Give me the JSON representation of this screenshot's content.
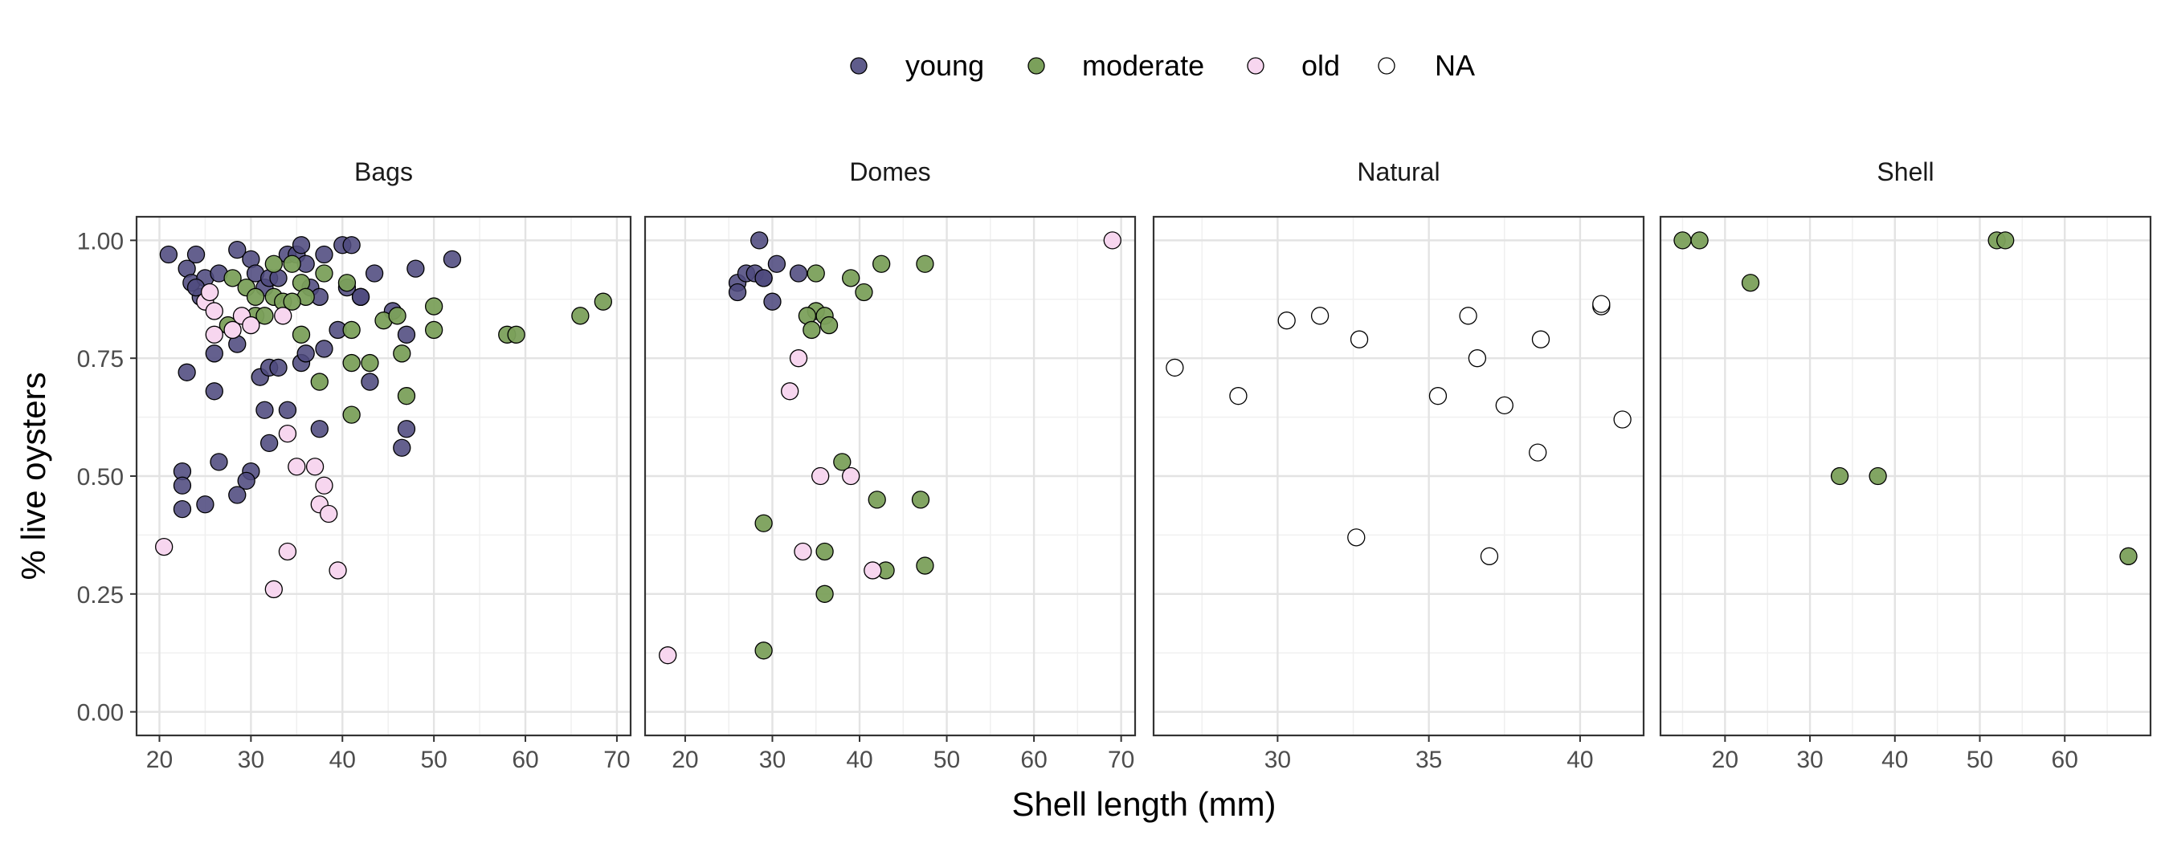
{
  "chart_data": {
    "type": "scatter",
    "title": "",
    "xlabel": "Shell length (mm)",
    "ylabel": "% live oysters",
    "grid": true,
    "legend_position": "top",
    "legend": [
      {
        "key": "young",
        "label": "young",
        "color": "#4e4a7e"
      },
      {
        "key": "moderate",
        "label": "moderate",
        "color": "#7ba05b"
      },
      {
        "key": "old",
        "label": "old",
        "color": "#f7d6ef"
      },
      {
        "key": "NA",
        "label": "NA",
        "color": "#ffffff"
      }
    ],
    "y_ticks": [
      {
        "value": 0,
        "label": "0.00"
      },
      {
        "value": 0.25,
        "label": "0.25"
      },
      {
        "value": 0.5,
        "label": "0.50"
      },
      {
        "value": 0.75,
        "label": "0.75"
      },
      {
        "value": 1,
        "label": "1.00"
      }
    ],
    "ylim": [
      -0.05,
      1.05
    ],
    "panels": [
      {
        "name": "Bags",
        "xlim": [
          17.5,
          71.5
        ],
        "x_ticks": [
          {
            "value": 20,
            "label": "20"
          },
          {
            "value": 30,
            "label": "30"
          },
          {
            "value": 40,
            "label": "40"
          },
          {
            "value": 50,
            "label": "50"
          },
          {
            "value": 60,
            "label": "60"
          },
          {
            "value": 70,
            "label": "70"
          }
        ],
        "points": [
          {
            "x": 21,
            "y": 0.97,
            "g": "young"
          },
          {
            "x": 23,
            "y": 0.94,
            "g": "young"
          },
          {
            "x": 23.5,
            "y": 0.91,
            "g": "young"
          },
          {
            "x": 24,
            "y": 0.97,
            "g": "young"
          },
          {
            "x": 24.5,
            "y": 0.88,
            "g": "young"
          },
          {
            "x": 25,
            "y": 0.92,
            "g": "young"
          },
          {
            "x": 24,
            "y": 0.9,
            "g": "young"
          },
          {
            "x": 26.5,
            "y": 0.93,
            "g": "young"
          },
          {
            "x": 28.5,
            "y": 0.98,
            "g": "young"
          },
          {
            "x": 30,
            "y": 0.96,
            "g": "young"
          },
          {
            "x": 30.5,
            "y": 0.93,
            "g": "young"
          },
          {
            "x": 31.5,
            "y": 0.9,
            "g": "young"
          },
          {
            "x": 32,
            "y": 0.92,
            "g": "young"
          },
          {
            "x": 33,
            "y": 0.92,
            "g": "young"
          },
          {
            "x": 34,
            "y": 0.97,
            "g": "young"
          },
          {
            "x": 35,
            "y": 0.97,
            "g": "young"
          },
          {
            "x": 35.5,
            "y": 0.99,
            "g": "young"
          },
          {
            "x": 36,
            "y": 0.95,
            "g": "young"
          },
          {
            "x": 36.5,
            "y": 0.9,
            "g": "young"
          },
          {
            "x": 37.5,
            "y": 0.88,
            "g": "young"
          },
          {
            "x": 38,
            "y": 0.97,
            "g": "young"
          },
          {
            "x": 40,
            "y": 0.99,
            "g": "young"
          },
          {
            "x": 41,
            "y": 0.99,
            "g": "young"
          },
          {
            "x": 40.5,
            "y": 0.9,
            "g": "young"
          },
          {
            "x": 42,
            "y": 0.88,
            "g": "young"
          },
          {
            "x": 43.5,
            "y": 0.93,
            "g": "young"
          },
          {
            "x": 48,
            "y": 0.94,
            "g": "young"
          },
          {
            "x": 52,
            "y": 0.96,
            "g": "young"
          },
          {
            "x": 23,
            "y": 0.72,
            "g": "young"
          },
          {
            "x": 26,
            "y": 0.76,
            "g": "young"
          },
          {
            "x": 28.5,
            "y": 0.78,
            "g": "young"
          },
          {
            "x": 26,
            "y": 0.68,
            "g": "young"
          },
          {
            "x": 31,
            "y": 0.71,
            "g": "young"
          },
          {
            "x": 32,
            "y": 0.73,
            "g": "young"
          },
          {
            "x": 33,
            "y": 0.73,
            "g": "young"
          },
          {
            "x": 35.5,
            "y": 0.74,
            "g": "young"
          },
          {
            "x": 36,
            "y": 0.76,
            "g": "young"
          },
          {
            "x": 38,
            "y": 0.77,
            "g": "young"
          },
          {
            "x": 39.5,
            "y": 0.81,
            "g": "young"
          },
          {
            "x": 42,
            "y": 0.88,
            "g": "young"
          },
          {
            "x": 43,
            "y": 0.7,
            "g": "young"
          },
          {
            "x": 45.5,
            "y": 0.85,
            "g": "young"
          },
          {
            "x": 47,
            "y": 0.8,
            "g": "young"
          },
          {
            "x": 31.5,
            "y": 0.64,
            "g": "young"
          },
          {
            "x": 34,
            "y": 0.64,
            "g": "young"
          },
          {
            "x": 37.5,
            "y": 0.6,
            "g": "young"
          },
          {
            "x": 32,
            "y": 0.57,
            "g": "young"
          },
          {
            "x": 46.5,
            "y": 0.56,
            "g": "young"
          },
          {
            "x": 47,
            "y": 0.6,
            "g": "young"
          },
          {
            "x": 22.5,
            "y": 0.51,
            "g": "young"
          },
          {
            "x": 22.5,
            "y": 0.48,
            "g": "young"
          },
          {
            "x": 26.5,
            "y": 0.53,
            "g": "young"
          },
          {
            "x": 30,
            "y": 0.51,
            "g": "young"
          },
          {
            "x": 29.5,
            "y": 0.49,
            "g": "young"
          },
          {
            "x": 28.5,
            "y": 0.46,
            "g": "young"
          },
          {
            "x": 22.5,
            "y": 0.43,
            "g": "young"
          },
          {
            "x": 25,
            "y": 0.44,
            "g": "young"
          },
          {
            "x": 28,
            "y": 0.92,
            "g": "moderate"
          },
          {
            "x": 29.5,
            "y": 0.9,
            "g": "moderate"
          },
          {
            "x": 30.5,
            "y": 0.88,
            "g": "moderate"
          },
          {
            "x": 32.5,
            "y": 0.95,
            "g": "moderate"
          },
          {
            "x": 34.5,
            "y": 0.95,
            "g": "moderate"
          },
          {
            "x": 35.5,
            "y": 0.91,
            "g": "moderate"
          },
          {
            "x": 36,
            "y": 0.88,
            "g": "moderate"
          },
          {
            "x": 32.5,
            "y": 0.88,
            "g": "moderate"
          },
          {
            "x": 33.5,
            "y": 0.87,
            "g": "moderate"
          },
          {
            "x": 34.5,
            "y": 0.87,
            "g": "moderate"
          },
          {
            "x": 38,
            "y": 0.93,
            "g": "moderate"
          },
          {
            "x": 40.5,
            "y": 0.91,
            "g": "moderate"
          },
          {
            "x": 30.5,
            "y": 0.84,
            "g": "moderate"
          },
          {
            "x": 31.5,
            "y": 0.84,
            "g": "moderate"
          },
          {
            "x": 27.5,
            "y": 0.82,
            "g": "moderate"
          },
          {
            "x": 35.5,
            "y": 0.8,
            "g": "moderate"
          },
          {
            "x": 41,
            "y": 0.81,
            "g": "moderate"
          },
          {
            "x": 44.5,
            "y": 0.83,
            "g": "moderate"
          },
          {
            "x": 46,
            "y": 0.84,
            "g": "moderate"
          },
          {
            "x": 50,
            "y": 0.86,
            "g": "moderate"
          },
          {
            "x": 50,
            "y": 0.81,
            "g": "moderate"
          },
          {
            "x": 58,
            "y": 0.8,
            "g": "moderate"
          },
          {
            "x": 59,
            "y": 0.8,
            "g": "moderate"
          },
          {
            "x": 66,
            "y": 0.84,
            "g": "moderate"
          },
          {
            "x": 68.5,
            "y": 0.87,
            "g": "moderate"
          },
          {
            "x": 37.5,
            "y": 0.7,
            "g": "moderate"
          },
          {
            "x": 41,
            "y": 0.74,
            "g": "moderate"
          },
          {
            "x": 43,
            "y": 0.74,
            "g": "moderate"
          },
          {
            "x": 46.5,
            "y": 0.76,
            "g": "moderate"
          },
          {
            "x": 47,
            "y": 0.67,
            "g": "moderate"
          },
          {
            "x": 41,
            "y": 0.63,
            "g": "moderate"
          },
          {
            "x": 25,
            "y": 0.87,
            "g": "old"
          },
          {
            "x": 25.5,
            "y": 0.89,
            "g": "old"
          },
          {
            "x": 26,
            "y": 0.85,
            "g": "old"
          },
          {
            "x": 26,
            "y": 0.8,
            "g": "old"
          },
          {
            "x": 28,
            "y": 0.81,
            "g": "old"
          },
          {
            "x": 29,
            "y": 0.84,
            "g": "old"
          },
          {
            "x": 30,
            "y": 0.82,
            "g": "old"
          },
          {
            "x": 33.5,
            "y": 0.84,
            "g": "old"
          },
          {
            "x": 34,
            "y": 0.59,
            "g": "old"
          },
          {
            "x": 35,
            "y": 0.52,
            "g": "old"
          },
          {
            "x": 37,
            "y": 0.52,
            "g": "old"
          },
          {
            "x": 38,
            "y": 0.48,
            "g": "old"
          },
          {
            "x": 37.5,
            "y": 0.44,
            "g": "old"
          },
          {
            "x": 38.5,
            "y": 0.42,
            "g": "old"
          },
          {
            "x": 20.5,
            "y": 0.35,
            "g": "old"
          },
          {
            "x": 34,
            "y": 0.34,
            "g": "old"
          },
          {
            "x": 39.5,
            "y": 0.3,
            "g": "old"
          },
          {
            "x": 32.5,
            "y": 0.26,
            "g": "old"
          }
        ]
      },
      {
        "name": "Domes",
        "xlim": [
          15.4,
          71.6
        ],
        "x_ticks": [
          {
            "value": 20,
            "label": "20"
          },
          {
            "value": 30,
            "label": "30"
          },
          {
            "value": 40,
            "label": "40"
          },
          {
            "value": 50,
            "label": "50"
          },
          {
            "value": 60,
            "label": "60"
          },
          {
            "value": 70,
            "label": "70"
          }
        ],
        "points": [
          {
            "x": 28.5,
            "y": 1.0,
            "g": "young"
          },
          {
            "x": 26,
            "y": 0.91,
            "g": "young"
          },
          {
            "x": 27,
            "y": 0.93,
            "g": "young"
          },
          {
            "x": 28,
            "y": 0.93,
            "g": "young"
          },
          {
            "x": 29,
            "y": 0.92,
            "g": "young"
          },
          {
            "x": 30.5,
            "y": 0.95,
            "g": "young"
          },
          {
            "x": 33,
            "y": 0.93,
            "g": "young"
          },
          {
            "x": 26,
            "y": 0.89,
            "g": "young"
          },
          {
            "x": 30,
            "y": 0.87,
            "g": "young"
          },
          {
            "x": 29,
            "y": 0.92,
            "g": "young"
          },
          {
            "x": 35,
            "y": 0.93,
            "g": "moderate"
          },
          {
            "x": 39,
            "y": 0.92,
            "g": "moderate"
          },
          {
            "x": 42.5,
            "y": 0.95,
            "g": "moderate"
          },
          {
            "x": 47.5,
            "y": 0.95,
            "g": "moderate"
          },
          {
            "x": 40.5,
            "y": 0.89,
            "g": "moderate"
          },
          {
            "x": 35,
            "y": 0.85,
            "g": "moderate"
          },
          {
            "x": 36,
            "y": 0.84,
            "g": "moderate"
          },
          {
            "x": 34,
            "y": 0.84,
            "g": "moderate"
          },
          {
            "x": 34.5,
            "y": 0.81,
            "g": "moderate"
          },
          {
            "x": 36.5,
            "y": 0.82,
            "g": "moderate"
          },
          {
            "x": 38,
            "y": 0.53,
            "g": "moderate"
          },
          {
            "x": 42,
            "y": 0.45,
            "g": "moderate"
          },
          {
            "x": 47,
            "y": 0.45,
            "g": "moderate"
          },
          {
            "x": 29,
            "y": 0.4,
            "g": "moderate"
          },
          {
            "x": 36,
            "y": 0.34,
            "g": "moderate"
          },
          {
            "x": 43,
            "y": 0.3,
            "g": "moderate"
          },
          {
            "x": 47.5,
            "y": 0.31,
            "g": "moderate"
          },
          {
            "x": 36,
            "y": 0.25,
            "g": "moderate"
          },
          {
            "x": 29,
            "y": 0.13,
            "g": "moderate"
          },
          {
            "x": 69,
            "y": 1.0,
            "g": "old"
          },
          {
            "x": 33,
            "y": 0.75,
            "g": "old"
          },
          {
            "x": 32,
            "y": 0.68,
            "g": "old"
          },
          {
            "x": 35.5,
            "y": 0.5,
            "g": "old"
          },
          {
            "x": 39,
            "y": 0.5,
            "g": "old"
          },
          {
            "x": 33.5,
            "y": 0.34,
            "g": "old"
          },
          {
            "x": 41.5,
            "y": 0.3,
            "g": "old"
          },
          {
            "x": 18,
            "y": 0.12,
            "g": "old"
          }
        ]
      },
      {
        "name": "Natural",
        "xlim": [
          25.9,
          42.1
        ],
        "x_ticks": [
          {
            "value": 30,
            "label": "30"
          },
          {
            "value": 35,
            "label": "35"
          },
          {
            "value": 40,
            "label": "40"
          }
        ],
        "points": [
          {
            "x": 26.6,
            "y": 0.73,
            "g": "NA"
          },
          {
            "x": 28.7,
            "y": 0.67,
            "g": "NA"
          },
          {
            "x": 30.3,
            "y": 0.83,
            "g": "NA"
          },
          {
            "x": 31.4,
            "y": 0.84,
            "g": "NA"
          },
          {
            "x": 32.7,
            "y": 0.79,
            "g": "NA"
          },
          {
            "x": 32.6,
            "y": 0.37,
            "g": "NA"
          },
          {
            "x": 35.3,
            "y": 0.67,
            "g": "NA"
          },
          {
            "x": 36.3,
            "y": 0.84,
            "g": "NA"
          },
          {
            "x": 36.6,
            "y": 0.75,
            "g": "NA"
          },
          {
            "x": 37,
            "y": 0.33,
            "g": "NA"
          },
          {
            "x": 37.5,
            "y": 0.65,
            "g": "NA"
          },
          {
            "x": 38.6,
            "y": 0.55,
            "g": "NA"
          },
          {
            "x": 38.7,
            "y": 0.79,
            "g": "NA"
          },
          {
            "x": 40.7,
            "y": 0.86,
            "g": "NA"
          },
          {
            "x": 40.7,
            "y": 0.865,
            "g": "NA"
          },
          {
            "x": 41.4,
            "y": 0.62,
            "g": "NA"
          }
        ]
      },
      {
        "name": "Shell",
        "xlim": [
          12.4,
          70.1
        ],
        "x_ticks": [
          {
            "value": 20,
            "label": "20"
          },
          {
            "value": 30,
            "label": "30"
          },
          {
            "value": 40,
            "label": "40"
          },
          {
            "value": 50,
            "label": "50"
          },
          {
            "value": 60,
            "label": "60"
          }
        ],
        "points": [
          {
            "x": 15,
            "y": 1.0,
            "g": "moderate"
          },
          {
            "x": 17,
            "y": 1.0,
            "g": "moderate"
          },
          {
            "x": 52,
            "y": 1.0,
            "g": "moderate"
          },
          {
            "x": 53,
            "y": 1.0,
            "g": "moderate"
          },
          {
            "x": 23,
            "y": 0.91,
            "g": "moderate"
          },
          {
            "x": 33.5,
            "y": 0.5,
            "g": "moderate"
          },
          {
            "x": 38,
            "y": 0.5,
            "g": "moderate"
          },
          {
            "x": 67.5,
            "y": 0.33,
            "g": "moderate"
          }
        ]
      }
    ]
  }
}
